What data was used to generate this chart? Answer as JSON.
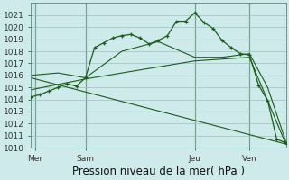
{
  "bg_color": "#ceeaea",
  "grid_color": "#9dbfbf",
  "line_color": "#1a5c1a",
  "ylim": [
    1010,
    1022
  ],
  "xlim": [
    0,
    28
  ],
  "yticks": [
    1010,
    1011,
    1012,
    1013,
    1014,
    1015,
    1016,
    1017,
    1018,
    1019,
    1020,
    1021
  ],
  "xlabel": "Pression niveau de la mer( hPa )",
  "xlabel_fontsize": 8.5,
  "tick_fontsize": 6.5,
  "day_labels": [
    "Mer",
    "Sam",
    "Jeu",
    "Ven"
  ],
  "day_positions": [
    0.5,
    6,
    18,
    24
  ],
  "vline_positions": [
    0.5,
    6,
    18,
    24
  ],
  "vline_color": "#2a5a2a",
  "series_main": {
    "x": [
      0,
      1,
      2,
      3,
      4,
      5,
      6,
      7,
      8,
      9,
      10,
      11,
      12,
      13,
      14,
      15,
      16,
      17,
      18,
      19,
      20,
      21,
      22,
      23,
      24,
      25,
      26,
      27,
      28
    ],
    "y": [
      1014.2,
      1014.4,
      1014.7,
      1015.0,
      1015.3,
      1015.1,
      1015.8,
      1018.3,
      1018.7,
      1019.1,
      1019.3,
      1019.4,
      1019.1,
      1018.6,
      1018.9,
      1019.3,
      1020.5,
      1020.5,
      1021.2,
      1020.4,
      1019.9,
      1018.9,
      1018.3,
      1017.8,
      1017.7,
      1015.2,
      1013.9,
      1010.7,
      1010.4
    ]
  },
  "series_smooth": {
    "x": [
      0,
      3,
      6,
      10,
      14,
      18,
      21,
      24,
      26,
      28
    ],
    "y": [
      1016.0,
      1016.2,
      1015.8,
      1018.0,
      1018.8,
      1017.5,
      1017.5,
      1017.8,
      1015.0,
      1010.5
    ]
  },
  "series_line2": {
    "x": [
      0,
      6,
      18,
      24,
      28
    ],
    "y": [
      1014.8,
      1015.7,
      1017.2,
      1017.5,
      1010.3
    ]
  },
  "series_diagonal": {
    "x": [
      0,
      28
    ],
    "y": [
      1015.8,
      1010.3
    ]
  }
}
